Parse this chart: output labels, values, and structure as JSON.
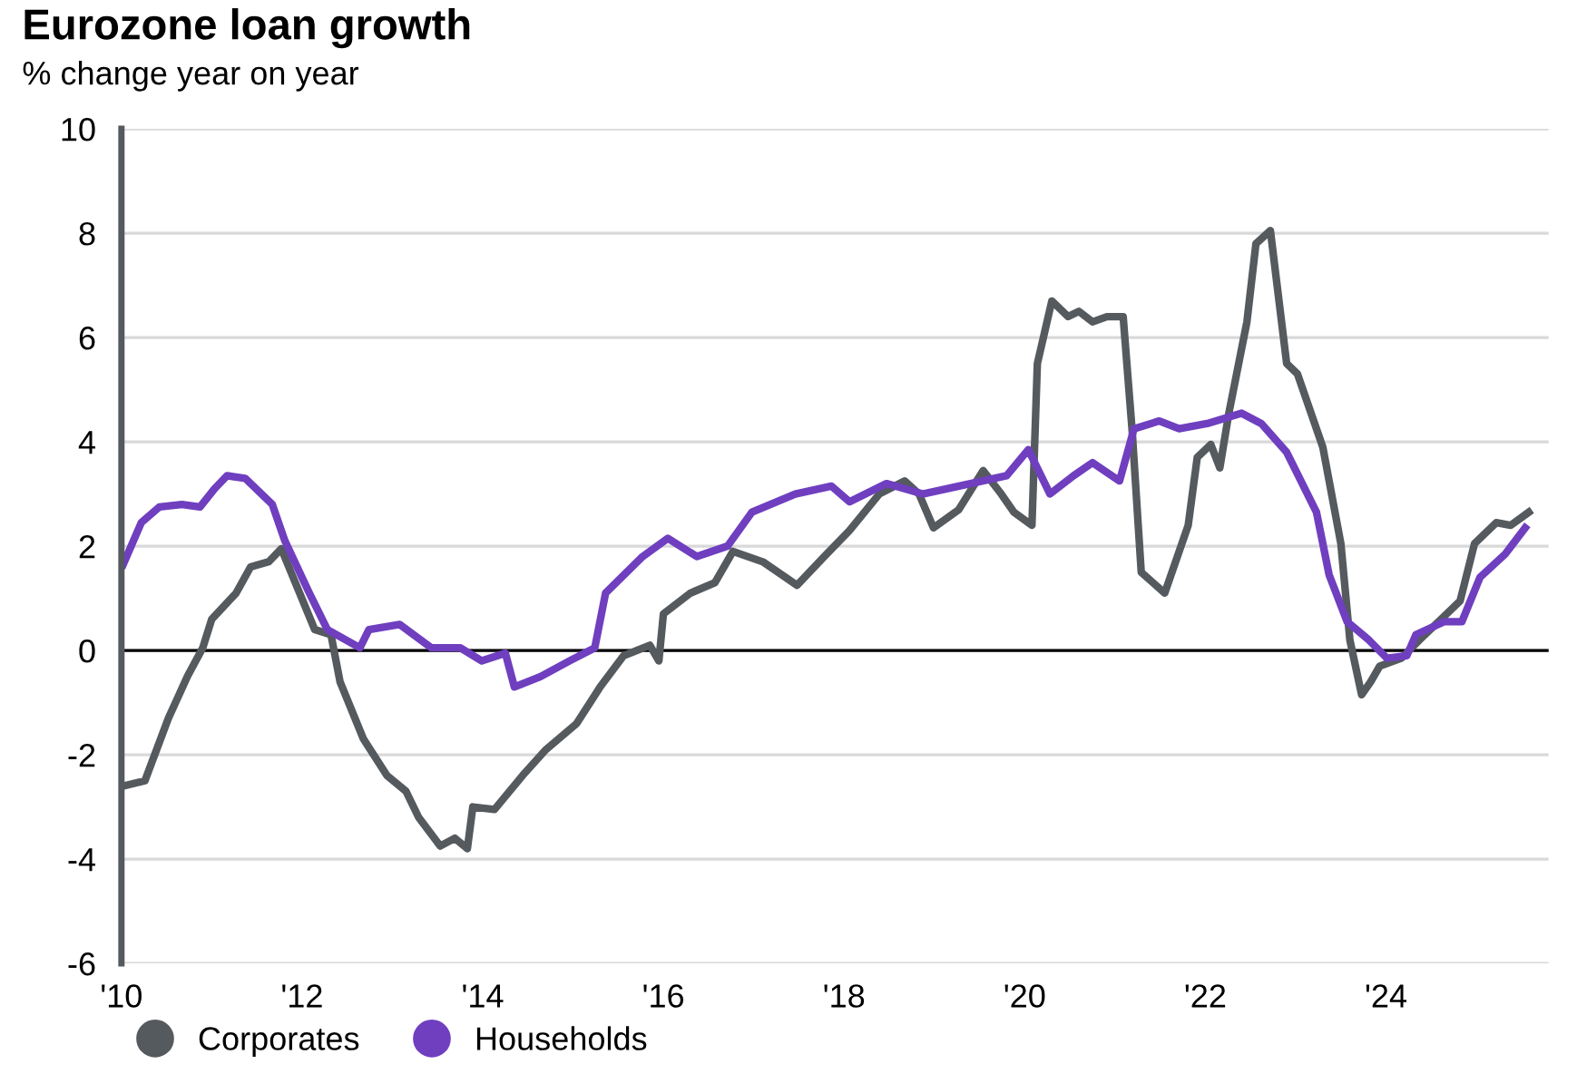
{
  "chart_data": {
    "type": "line",
    "title": "Eurozone loan growth",
    "subtitle": "% change year on year",
    "xlim": [
      2010,
      2025.8
    ],
    "ylim": [
      -6,
      10
    ],
    "xticks": [
      {
        "value": 2010,
        "label": "'10"
      },
      {
        "value": 2012,
        "label": "'12"
      },
      {
        "value": 2014,
        "label": "'14"
      },
      {
        "value": 2016,
        "label": "'16"
      },
      {
        "value": 2018,
        "label": "'18"
      },
      {
        "value": 2020,
        "label": "'20"
      },
      {
        "value": 2022,
        "label": "'22"
      },
      {
        "value": 2024,
        "label": "'24"
      }
    ],
    "yticks": [
      -6,
      -4,
      -2,
      0,
      2,
      4,
      6,
      8,
      10
    ],
    "grid": "y",
    "legend": "bottom left",
    "ref_lines": [
      {
        "axis": "y",
        "value": 0,
        "color": "#000000"
      }
    ],
    "series": [
      {
        "name": "Corporates",
        "color": "#555a5f",
        "x": [
          2010.02,
          2010.26,
          2010.52,
          2010.73,
          2010.9,
          2011.0,
          2011.27,
          2011.43,
          2011.63,
          2011.77,
          2012.14,
          2012.32,
          2012.42,
          2012.68,
          2012.94,
          2013.15,
          2013.29,
          2013.53,
          2013.69,
          2013.83,
          2013.89,
          2014.13,
          2014.44,
          2014.7,
          2015.04,
          2015.3,
          2015.56,
          2015.85,
          2015.95,
          2016.0,
          2016.3,
          2016.57,
          2016.77,
          2017.1,
          2017.48,
          2017.78,
          2018.06,
          2018.39,
          2018.67,
          2018.83,
          2018.99,
          2019.27,
          2019.54,
          2019.74,
          2019.88,
          2020.08,
          2020.14,
          2020.3,
          2020.48,
          2020.6,
          2020.75,
          2020.91,
          2021.09,
          2021.19,
          2021.29,
          2021.55,
          2021.71,
          2021.81,
          2021.91,
          2022.06,
          2022.16,
          2022.26,
          2022.46,
          2022.56,
          2022.72,
          2022.9,
          2023.02,
          2023.3,
          2023.5,
          2023.6,
          2023.73,
          2023.83,
          2023.93,
          2024.17,
          2024.37,
          2024.64,
          2024.82,
          2024.98,
          2025.22,
          2025.38,
          2025.58
        ],
        "values": [
          -2.6,
          -2.5,
          -1.3,
          -0.5,
          0.05,
          0.6,
          1.1,
          1.6,
          1.7,
          1.95,
          0.4,
          0.3,
          -0.6,
          -1.7,
          -2.4,
          -2.7,
          -3.2,
          -3.75,
          -3.6,
          -3.8,
          -3.0,
          -3.05,
          -2.4,
          -1.9,
          -1.4,
          -0.7,
          -0.1,
          0.1,
          -0.2,
          0.7,
          1.1,
          1.3,
          1.9,
          1.7,
          1.25,
          1.8,
          2.3,
          3.0,
          3.25,
          3.0,
          2.35,
          2.7,
          3.45,
          3.0,
          2.65,
          2.4,
          5.5,
          6.7,
          6.4,
          6.5,
          6.3,
          6.4,
          6.4,
          4.2,
          1.5,
          1.1,
          1.9,
          2.4,
          3.7,
          3.95,
          3.5,
          4.55,
          6.3,
          7.8,
          8.05,
          5.5,
          5.3,
          3.9,
          2.05,
          0.2,
          -0.85,
          -0.6,
          -0.3,
          -0.15,
          0.2,
          0.65,
          0.95,
          2.05,
          2.45,
          2.4,
          2.65
        ]
      },
      {
        "name": "Households",
        "color": "#6f3fbf",
        "x": [
          2010.02,
          2010.22,
          2010.42,
          2010.67,
          2010.87,
          2011.03,
          2011.17,
          2011.37,
          2011.67,
          2011.81,
          2012.08,
          2012.28,
          2012.64,
          2012.74,
          2013.08,
          2013.43,
          2013.75,
          2013.99,
          2014.25,
          2014.35,
          2014.64,
          2014.96,
          2015.24,
          2015.36,
          2015.77,
          2016.05,
          2016.37,
          2016.71,
          2016.98,
          2017.46,
          2017.86,
          2018.06,
          2018.47,
          2018.87,
          2019.4,
          2019.8,
          2020.04,
          2020.28,
          2020.54,
          2020.75,
          2021.05,
          2021.21,
          2021.49,
          2021.71,
          2022.02,
          2022.4,
          2022.62,
          2022.9,
          2023.23,
          2023.37,
          2023.57,
          2023.81,
          2024.01,
          2024.23,
          2024.33,
          2024.64,
          2024.84,
          2025.04,
          2025.32,
          2025.54
        ],
        "values": [
          1.65,
          2.45,
          2.75,
          2.8,
          2.75,
          3.1,
          3.35,
          3.3,
          2.8,
          2.1,
          1.1,
          0.4,
          0.05,
          0.4,
          0.5,
          0.05,
          0.05,
          -0.2,
          -0.05,
          -0.7,
          -0.5,
          -0.2,
          0.05,
          1.1,
          1.8,
          2.15,
          1.8,
          2.0,
          2.65,
          3.0,
          3.15,
          2.85,
          3.2,
          3.0,
          3.2,
          3.35,
          3.85,
          3.0,
          3.35,
          3.6,
          3.25,
          4.25,
          4.4,
          4.25,
          4.35,
          4.55,
          4.35,
          3.8,
          2.65,
          1.45,
          0.55,
          0.2,
          -0.15,
          -0.1,
          0.3,
          0.55,
          0.55,
          1.4,
          1.85,
          2.35
        ]
      }
    ]
  }
}
